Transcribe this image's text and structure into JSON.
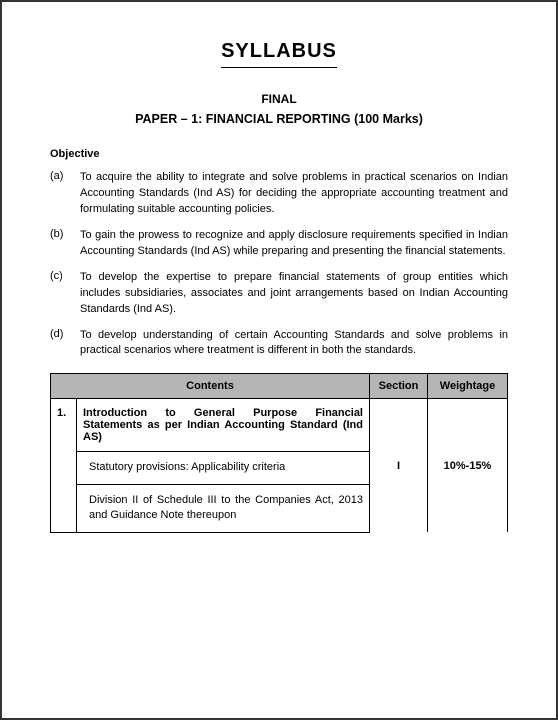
{
  "doc": {
    "title": "SYLLABUS",
    "level": "FINAL",
    "paper": "PAPER – 1: FINANCIAL REPORTING (100 Marks)",
    "objective_heading": "Objective",
    "objectives": [
      {
        "marker": "(a)",
        "text": "To acquire the ability to integrate and solve problems in practical scenarios on Indian Accounting Standards (Ind AS) for deciding the appropriate accounting treatment and formulating suitable accounting policies."
      },
      {
        "marker": "(b)",
        "text": "To gain the prowess to recognize and apply disclosure requirements specified in Indian Accounting Standards (Ind AS) while preparing and presenting the financial statements."
      },
      {
        "marker": "(c)",
        "text": "To develop the expertise to prepare financial statements of group entities which includes subsidiaries, associates and joint arrangements based on Indian Accounting Standards (Ind AS)."
      },
      {
        "marker": "(d)",
        "text": "To develop understanding of certain Accounting Standards and solve problems in practical scenarios where treatment is different in both the standards."
      }
    ],
    "table": {
      "headers": {
        "contents": "Contents",
        "section": "Section",
        "weightage": "Weightage"
      },
      "row1": {
        "num": "1.",
        "content": "Introduction to General Purpose Financial Statements as per Indian Accounting Standard (Ind AS)"
      },
      "row2": {
        "content": "Statutory provisions: Applicability criteria"
      },
      "row3": {
        "content": "Division II of Schedule III to the Companies Act, 2013 and Guidance Note thereupon"
      },
      "section": "I",
      "weightage": "10%-15%"
    }
  }
}
